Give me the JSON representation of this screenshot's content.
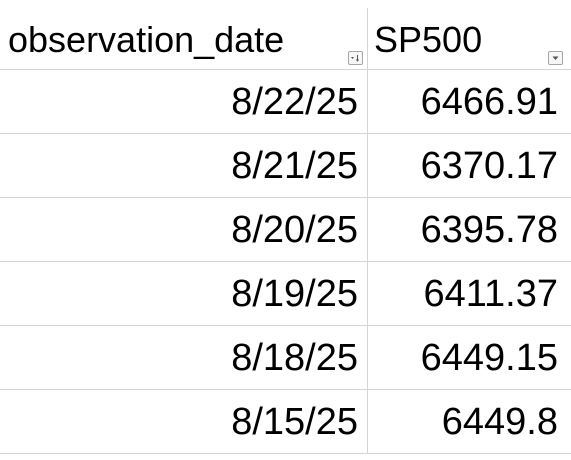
{
  "sheet": {
    "columns": [
      "observation_date",
      "SP500"
    ],
    "rows": [
      {
        "observation_date": "8/22/25",
        "SP500": "6466.91"
      },
      {
        "observation_date": "8/21/25",
        "SP500": "6370.17"
      },
      {
        "observation_date": "8/20/25",
        "SP500": "6395.78"
      },
      {
        "observation_date": "8/19/25",
        "SP500": "6411.37"
      },
      {
        "observation_date": "8/18/25",
        "SP500": "6449.15"
      },
      {
        "observation_date": "8/15/25",
        "SP500": "6449.8"
      }
    ],
    "filters": {
      "observation_date": "sorted-descending-filter-icon",
      "SP500": "filter-dropdown-icon"
    },
    "gridline_color": "#d4d4d4"
  }
}
